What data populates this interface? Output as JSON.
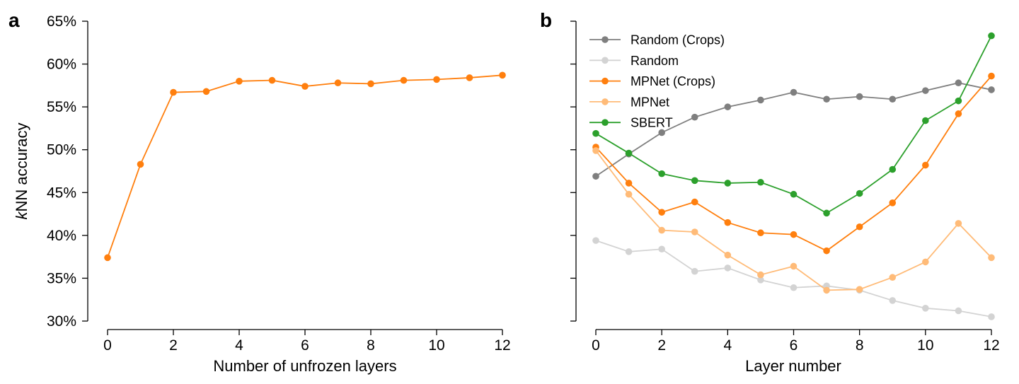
{
  "chart_data": [
    {
      "type": "line",
      "panel_label": "a",
      "xlabel": "Number of unfrozen layers",
      "ylabel_italic": "k",
      "ylabel_rest": "NN accuracy",
      "xlim": [
        0,
        12
      ],
      "ylim": [
        30,
        65
      ],
      "x_ticks": [
        "0",
        "2",
        "4",
        "6",
        "8",
        "10",
        "12"
      ],
      "y_ticks": [
        "30%",
        "35%",
        "40%",
        "45%",
        "50%",
        "55%",
        "60%",
        "65%"
      ],
      "grid": false,
      "series": [
        {
          "color": "#ff7f0e",
          "x": [
            0,
            1,
            2,
            3,
            4,
            5,
            6,
            7,
            8,
            9,
            10,
            11,
            12
          ],
          "values": [
            37.4,
            48.3,
            56.7,
            56.8,
            58.0,
            58.1,
            57.4,
            57.8,
            57.7,
            58.1,
            58.2,
            58.4,
            58.7
          ]
        }
      ]
    },
    {
      "type": "line",
      "panel_label": "b",
      "xlabel": "Layer number",
      "xlim": [
        0,
        12
      ],
      "ylim": [
        30,
        65
      ],
      "x_ticks": [
        "0",
        "2",
        "4",
        "6",
        "8",
        "10",
        "12"
      ],
      "grid": false,
      "legend_position": "top-left",
      "series": [
        {
          "name": "Random (Crops)",
          "color": "#7f7f7f",
          "x": [
            0,
            1,
            2,
            3,
            4,
            5,
            6,
            7,
            8,
            9,
            10,
            11,
            12
          ],
          "values": [
            46.9,
            49.5,
            52.0,
            53.8,
            55.0,
            55.8,
            56.7,
            55.9,
            56.2,
            55.9,
            56.9,
            57.8,
            57.0
          ]
        },
        {
          "name": "Random",
          "color": "#d3d3d3",
          "x": [
            0,
            1,
            2,
            3,
            4,
            5,
            6,
            7,
            8,
            9,
            10,
            11,
            12
          ],
          "values": [
            39.4,
            38.1,
            38.4,
            35.8,
            36.2,
            34.8,
            33.9,
            34.1,
            33.6,
            32.4,
            31.5,
            31.2,
            30.5
          ]
        },
        {
          "name": "MPNet (Crops)",
          "color": "#ff7f0e",
          "x": [
            0,
            1,
            2,
            3,
            4,
            5,
            6,
            7,
            8,
            9,
            10,
            11,
            12
          ],
          "values": [
            50.3,
            46.1,
            42.7,
            43.9,
            41.5,
            40.3,
            40.1,
            38.2,
            41.0,
            43.8,
            48.2,
            54.2,
            58.6
          ]
        },
        {
          "name": "MPNet",
          "color": "#ffbb78",
          "x": [
            0,
            1,
            2,
            3,
            4,
            5,
            6,
            7,
            8,
            9,
            10,
            11,
            12
          ],
          "values": [
            49.9,
            44.8,
            40.6,
            40.4,
            37.7,
            35.4,
            36.4,
            33.6,
            33.7,
            35.1,
            36.9,
            41.4,
            37.4
          ]
        },
        {
          "name": "SBERT",
          "color": "#2ca02c",
          "x": [
            0,
            1,
            2,
            3,
            4,
            5,
            6,
            7,
            8,
            9,
            10,
            11,
            12
          ],
          "values": [
            51.9,
            49.6,
            47.2,
            46.4,
            46.1,
            46.2,
            44.8,
            42.6,
            44.9,
            47.7,
            53.4,
            55.7,
            63.3
          ]
        }
      ]
    }
  ]
}
